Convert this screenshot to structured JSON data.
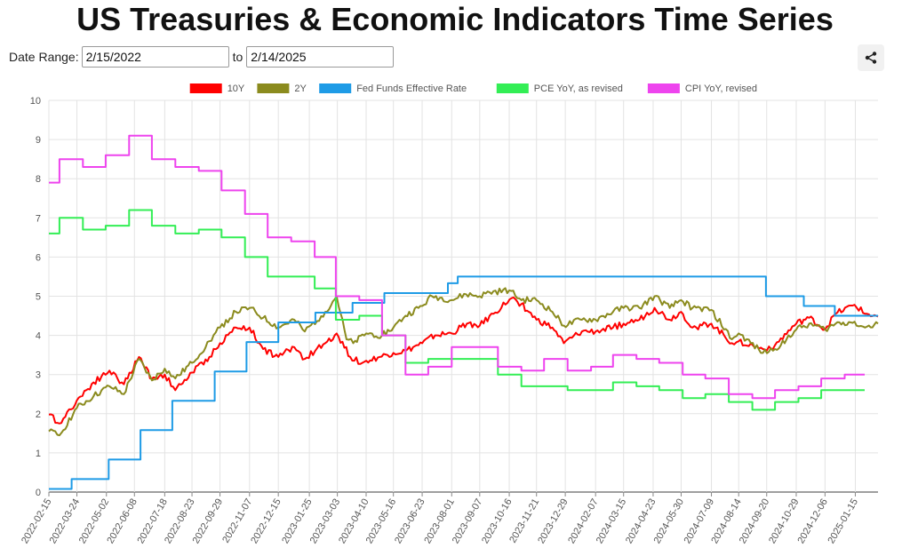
{
  "title": "US Treasuries & Economic Indicators Time Series",
  "controls": {
    "date_range_label": "Date Range:",
    "start_date": "2/15/2022",
    "to_label": "to",
    "end_date": "2/14/2025",
    "share_icon": "share-icon"
  },
  "chart_data": {
    "type": "line",
    "title": "US Treasuries & Economic Indicators Time Series",
    "xlabel": "",
    "ylabel": "",
    "ylim": [
      0,
      10
    ],
    "y_ticks": [
      "0",
      "1",
      "2",
      "3",
      "4",
      "5",
      "6",
      "7",
      "8",
      "9",
      "10"
    ],
    "x_ticks": [
      "2022-02-15",
      "2022-03-24",
      "2022-05-02",
      "2022-06-08",
      "2022-07-18",
      "2022-08-23",
      "2022-09-29",
      "2022-11-07",
      "2022-12-15",
      "2023-01-25",
      "2023-03-03",
      "2023-04-10",
      "2023-05-16",
      "2023-06-23",
      "2023-08-01",
      "2023-09-07",
      "2023-10-16",
      "2023-11-21",
      "2023-12-29",
      "2024-02-07",
      "2024-03-15",
      "2024-04-23",
      "2024-05-30",
      "2024-07-09",
      "2024-08-14",
      "2024-09-20",
      "2024-10-29",
      "2024-12-06",
      "2025-01-15"
    ],
    "x_range": [
      "2022-02-15",
      "2025-02-14"
    ],
    "grid": true,
    "legend_position": "top-center",
    "series": [
      {
        "name": "10Y",
        "color": "#ff0000",
        "style": "daily",
        "points": [
          [
            "2022-02-15",
            1.98
          ],
          [
            "2022-03-01",
            1.75
          ],
          [
            "2022-03-24",
            2.34
          ],
          [
            "2022-04-15",
            2.8
          ],
          [
            "2022-05-06",
            3.1
          ],
          [
            "2022-05-25",
            2.75
          ],
          [
            "2022-06-14",
            3.45
          ],
          [
            "2022-07-01",
            2.9
          ],
          [
            "2022-07-18",
            3.0
          ],
          [
            "2022-08-01",
            2.6
          ],
          [
            "2022-08-23",
            3.05
          ],
          [
            "2022-09-15",
            3.45
          ],
          [
            "2022-09-29",
            3.8
          ],
          [
            "2022-10-20",
            4.2
          ],
          [
            "2022-11-07",
            4.2
          ],
          [
            "2022-11-25",
            3.65
          ],
          [
            "2022-12-15",
            3.45
          ],
          [
            "2023-01-05",
            3.7
          ],
          [
            "2023-01-19",
            3.4
          ],
          [
            "2023-02-15",
            3.8
          ],
          [
            "2023-03-02",
            4.05
          ],
          [
            "2023-03-20",
            3.45
          ],
          [
            "2023-04-05",
            3.3
          ],
          [
            "2023-04-28",
            3.45
          ],
          [
            "2023-05-16",
            3.55
          ],
          [
            "2023-06-01",
            3.6
          ],
          [
            "2023-06-23",
            3.8
          ],
          [
            "2023-07-10",
            4.0
          ],
          [
            "2023-08-01",
            4.05
          ],
          [
            "2023-08-21",
            4.3
          ],
          [
            "2023-09-07",
            4.25
          ],
          [
            "2023-09-25",
            4.55
          ],
          [
            "2023-10-19",
            4.95
          ],
          [
            "2023-11-01",
            4.8
          ],
          [
            "2023-11-21",
            4.4
          ],
          [
            "2023-12-12",
            4.2
          ],
          [
            "2023-12-27",
            3.8
          ],
          [
            "2024-01-20",
            4.1
          ],
          [
            "2024-02-07",
            4.1
          ],
          [
            "2024-03-01",
            4.2
          ],
          [
            "2024-03-15",
            4.3
          ],
          [
            "2024-04-05",
            4.4
          ],
          [
            "2024-04-25",
            4.7
          ],
          [
            "2024-05-15",
            4.4
          ],
          [
            "2024-05-30",
            4.6
          ],
          [
            "2024-06-14",
            4.2
          ],
          [
            "2024-07-09",
            4.3
          ],
          [
            "2024-08-05",
            3.8
          ],
          [
            "2024-08-14",
            3.85
          ],
          [
            "2024-09-15",
            3.65
          ],
          [
            "2024-10-01",
            3.75
          ],
          [
            "2024-10-29",
            4.3
          ],
          [
            "2024-11-15",
            4.45
          ],
          [
            "2024-12-06",
            4.15
          ],
          [
            "2024-12-20",
            4.55
          ],
          [
            "2025-01-14",
            4.78
          ],
          [
            "2025-01-28",
            4.55
          ],
          [
            "2025-02-14",
            4.48
          ]
        ]
      },
      {
        "name": "2Y",
        "color": "#8b8b1e",
        "style": "daily",
        "points": [
          [
            "2022-02-15",
            1.55
          ],
          [
            "2022-03-01",
            1.45
          ],
          [
            "2022-03-24",
            2.15
          ],
          [
            "2022-04-15",
            2.45
          ],
          [
            "2022-05-06",
            2.7
          ],
          [
            "2022-05-25",
            2.5
          ],
          [
            "2022-06-14",
            3.4
          ],
          [
            "2022-07-01",
            2.85
          ],
          [
            "2022-07-18",
            3.15
          ],
          [
            "2022-08-01",
            2.9
          ],
          [
            "2022-08-23",
            3.3
          ],
          [
            "2022-09-15",
            3.85
          ],
          [
            "2022-09-29",
            4.2
          ],
          [
            "2022-10-20",
            4.6
          ],
          [
            "2022-11-07",
            4.7
          ],
          [
            "2022-11-25",
            4.45
          ],
          [
            "2022-12-15",
            4.2
          ],
          [
            "2023-01-05",
            4.4
          ],
          [
            "2023-01-19",
            4.1
          ],
          [
            "2023-02-15",
            4.6
          ],
          [
            "2023-03-02",
            5.0
          ],
          [
            "2023-03-15",
            3.9
          ],
          [
            "2023-03-24",
            3.8
          ],
          [
            "2023-04-10",
            4.05
          ],
          [
            "2023-05-01",
            4.0
          ],
          [
            "2023-05-16",
            4.2
          ],
          [
            "2023-06-01",
            4.5
          ],
          [
            "2023-06-23",
            4.75
          ],
          [
            "2023-07-06",
            5.0
          ],
          [
            "2023-08-01",
            4.9
          ],
          [
            "2023-08-20",
            5.05
          ],
          [
            "2023-09-07",
            5.0
          ],
          [
            "2023-09-20",
            5.1
          ],
          [
            "2023-10-16",
            5.15
          ],
          [
            "2023-11-01",
            4.9
          ],
          [
            "2023-11-21",
            4.9
          ],
          [
            "2023-12-12",
            4.6
          ],
          [
            "2023-12-27",
            4.25
          ],
          [
            "2024-01-20",
            4.4
          ],
          [
            "2024-02-07",
            4.4
          ],
          [
            "2024-03-01",
            4.6
          ],
          [
            "2024-03-15",
            4.7
          ],
          [
            "2024-04-05",
            4.7
          ],
          [
            "2024-04-25",
            5.0
          ],
          [
            "2024-05-15",
            4.7
          ],
          [
            "2024-05-30",
            4.9
          ],
          [
            "2024-06-14",
            4.7
          ],
          [
            "2024-07-09",
            4.65
          ],
          [
            "2024-08-05",
            3.9
          ],
          [
            "2024-08-14",
            4.05
          ],
          [
            "2024-09-15",
            3.55
          ],
          [
            "2024-10-01",
            3.65
          ],
          [
            "2024-10-29",
            4.15
          ],
          [
            "2024-11-15",
            4.3
          ],
          [
            "2024-12-06",
            4.15
          ],
          [
            "2024-12-20",
            4.3
          ],
          [
            "2025-01-14",
            4.35
          ],
          [
            "2025-01-28",
            4.2
          ],
          [
            "2025-02-14",
            4.3
          ]
        ]
      },
      {
        "name": "Fed Funds Effective Rate",
        "color": "#1e9be6",
        "style": "step",
        "points": [
          [
            "2022-02-15",
            0.08
          ],
          [
            "2022-03-17",
            0.33
          ],
          [
            "2022-05-05",
            0.83
          ],
          [
            "2022-06-16",
            1.58
          ],
          [
            "2022-07-28",
            2.33
          ],
          [
            "2022-09-22",
            3.08
          ],
          [
            "2022-11-03",
            3.83
          ],
          [
            "2022-12-15",
            4.33
          ],
          [
            "2023-02-02",
            4.58
          ],
          [
            "2023-03-23",
            4.83
          ],
          [
            "2023-05-04",
            5.08
          ],
          [
            "2023-07-27",
            5.33
          ],
          [
            "2023-08-09",
            5.5
          ],
          [
            "2024-09-19",
            5.0
          ],
          [
            "2024-11-08",
            4.75
          ],
          [
            "2024-12-19",
            4.5
          ],
          [
            "2025-02-14",
            4.5
          ]
        ]
      },
      {
        "name": "PCE YoY, as revised",
        "color": "#33ee55",
        "style": "step",
        "points": [
          [
            "2022-02-15",
            6.6
          ],
          [
            "2022-03-01",
            7.0
          ],
          [
            "2022-04-01",
            6.7
          ],
          [
            "2022-05-01",
            6.8
          ],
          [
            "2022-06-01",
            7.2
          ],
          [
            "2022-07-01",
            6.8
          ],
          [
            "2022-08-01",
            6.6
          ],
          [
            "2022-09-01",
            6.7
          ],
          [
            "2022-10-01",
            6.5
          ],
          [
            "2022-11-01",
            6.0
          ],
          [
            "2022-12-01",
            5.5
          ],
          [
            "2023-01-01",
            5.5
          ],
          [
            "2023-02-01",
            5.2
          ],
          [
            "2023-03-01",
            4.4
          ],
          [
            "2023-04-01",
            4.5
          ],
          [
            "2023-05-01",
            4.0
          ],
          [
            "2023-06-01",
            3.3
          ],
          [
            "2023-07-01",
            3.4
          ],
          [
            "2023-08-01",
            3.4
          ],
          [
            "2023-09-01",
            3.4
          ],
          [
            "2023-10-01",
            3.0
          ],
          [
            "2023-11-01",
            2.7
          ],
          [
            "2023-12-01",
            2.7
          ],
          [
            "2024-01-01",
            2.6
          ],
          [
            "2024-02-01",
            2.6
          ],
          [
            "2024-03-01",
            2.8
          ],
          [
            "2024-04-01",
            2.7
          ],
          [
            "2024-05-01",
            2.6
          ],
          [
            "2024-06-01",
            2.4
          ],
          [
            "2024-07-01",
            2.5
          ],
          [
            "2024-08-01",
            2.3
          ],
          [
            "2024-09-01",
            2.1
          ],
          [
            "2024-10-01",
            2.3
          ],
          [
            "2024-11-01",
            2.4
          ],
          [
            "2024-12-01",
            2.6
          ],
          [
            "2025-01-01",
            2.6
          ]
        ]
      },
      {
        "name": "CPI YoY, revised",
        "color": "#ee44ee",
        "style": "step",
        "points": [
          [
            "2022-02-15",
            7.9
          ],
          [
            "2022-03-01",
            8.5
          ],
          [
            "2022-04-01",
            8.3
          ],
          [
            "2022-05-01",
            8.6
          ],
          [
            "2022-06-01",
            9.1
          ],
          [
            "2022-07-01",
            8.5
          ],
          [
            "2022-08-01",
            8.3
          ],
          [
            "2022-09-01",
            8.2
          ],
          [
            "2022-10-01",
            7.7
          ],
          [
            "2022-11-01",
            7.1
          ],
          [
            "2022-12-01",
            6.5
          ],
          [
            "2023-01-01",
            6.4
          ],
          [
            "2023-02-01",
            6.0
          ],
          [
            "2023-03-01",
            5.0
          ],
          [
            "2023-04-01",
            4.9
          ],
          [
            "2023-05-01",
            4.0
          ],
          [
            "2023-06-01",
            3.0
          ],
          [
            "2023-07-01",
            3.2
          ],
          [
            "2023-08-01",
            3.7
          ],
          [
            "2023-09-01",
            3.7
          ],
          [
            "2023-10-01",
            3.2
          ],
          [
            "2023-11-01",
            3.1
          ],
          [
            "2023-12-01",
            3.4
          ],
          [
            "2024-01-01",
            3.1
          ],
          [
            "2024-02-01",
            3.2
          ],
          [
            "2024-03-01",
            3.5
          ],
          [
            "2024-04-01",
            3.4
          ],
          [
            "2024-05-01",
            3.3
          ],
          [
            "2024-06-01",
            3.0
          ],
          [
            "2024-07-01",
            2.9
          ],
          [
            "2024-08-01",
            2.5
          ],
          [
            "2024-09-01",
            2.4
          ],
          [
            "2024-10-01",
            2.6
          ],
          [
            "2024-11-01",
            2.7
          ],
          [
            "2024-12-01",
            2.9
          ],
          [
            "2025-01-01",
            3.0
          ]
        ]
      }
    ]
  }
}
